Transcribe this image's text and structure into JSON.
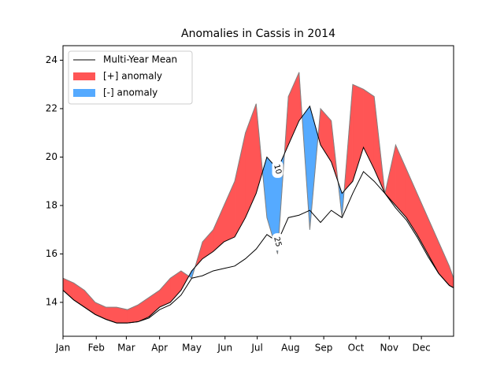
{
  "chart_data": {
    "type": "anomaly",
    "title": "Anomalies in Cassis in 2014",
    "x": [
      1,
      11,
      21,
      31,
      41,
      51,
      61,
      71,
      81,
      91,
      101,
      111,
      121,
      131,
      141,
      151,
      161,
      171,
      181,
      191,
      201,
      211,
      221,
      231,
      241,
      251,
      261,
      271,
      281,
      291,
      301,
      311,
      321,
      331,
      341,
      351,
      361,
      365
    ],
    "observed": {
      "color": "#808080",
      "values": [
        15.0,
        14.8,
        14.5,
        14.0,
        13.8,
        13.8,
        13.7,
        13.9,
        14.2,
        14.5,
        15.0,
        15.3,
        15.0,
        16.5,
        17.0,
        18.0,
        19.0,
        21.0,
        22.2,
        17.5,
        16.0,
        22.5,
        23.5,
        17.0,
        22.0,
        21.5,
        17.5,
        23.0,
        22.8,
        22.5,
        18.5,
        20.5,
        19.5,
        18.5,
        17.5,
        16.5,
        15.5,
        15.0
      ]
    },
    "mean_lines": [
      {
        "label": "10",
        "color": "#000000",
        "values": [
          14.5,
          14.1,
          13.8,
          13.5,
          13.3,
          13.15,
          13.15,
          13.2,
          13.4,
          13.8,
          14.0,
          14.5,
          15.3,
          15.8,
          16.1,
          16.5,
          16.7,
          17.5,
          18.5,
          20.0,
          19.5,
          20.5,
          21.5,
          22.1,
          20.5,
          19.8,
          18.5,
          19.0,
          20.4,
          19.5,
          18.5,
          18.0,
          17.5,
          16.8,
          16.0,
          15.2,
          14.7,
          14.6
        ]
      },
      {
        "label": "25",
        "color": "#000000",
        "values": [
          14.5,
          14.1,
          13.8,
          13.5,
          13.3,
          13.15,
          13.15,
          13.2,
          13.35,
          13.7,
          13.9,
          14.3,
          15.0,
          15.1,
          15.3,
          15.4,
          15.5,
          15.8,
          16.2,
          16.8,
          16.5,
          17.5,
          17.6,
          17.8,
          17.3,
          17.8,
          17.5,
          18.5,
          19.4,
          19.0,
          18.5,
          17.9,
          17.4,
          16.7,
          15.9,
          15.2,
          14.7,
          14.6
        ]
      }
    ],
    "legend": [
      {
        "name": "Multi-Year Mean",
        "color": "#000000"
      },
      {
        "name": "[+] anomaly",
        "color": "#ff5555"
      },
      {
        "name": "[-] anomaly",
        "color": "#55aaff"
      }
    ],
    "legend_position": "upper left",
    "xlim": [
      1,
      365
    ],
    "xticks": [
      {
        "value": 1,
        "label": "Jan"
      },
      {
        "value": 32,
        "label": "Feb"
      },
      {
        "value": 60,
        "label": "Mar"
      },
      {
        "value": 91,
        "label": "Apr"
      },
      {
        "value": 121,
        "label": "May"
      },
      {
        "value": 152,
        "label": "Jun"
      },
      {
        "value": 182,
        "label": "Jul"
      },
      {
        "value": 213,
        "label": "Aug"
      },
      {
        "value": 244,
        "label": "Sep"
      },
      {
        "value": 274,
        "label": "Oct"
      },
      {
        "value": 305,
        "label": "Nov"
      },
      {
        "value": 335,
        "label": "Dec"
      }
    ],
    "ylim": [
      12.6,
      24.6
    ],
    "yticks": [
      14,
      16,
      18,
      20,
      22,
      24
    ]
  }
}
